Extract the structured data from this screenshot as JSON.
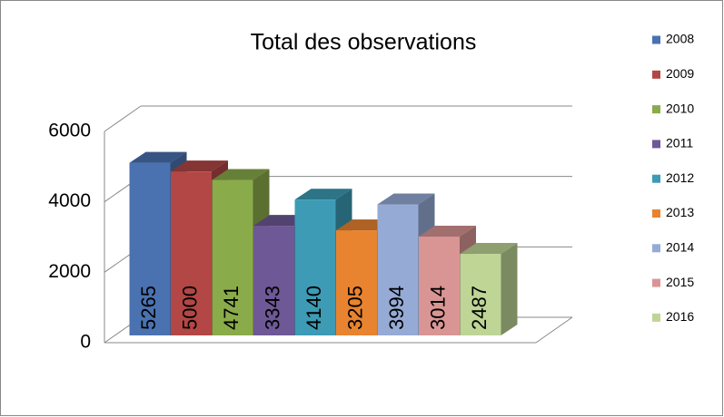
{
  "chart_data": {
    "type": "bar",
    "title": "Total des observations",
    "series": [
      {
        "name": "2008",
        "color": "#4a72b0",
        "values": [
          5265
        ]
      },
      {
        "name": "2009",
        "color": "#b24745",
        "values": [
          5000
        ]
      },
      {
        "name": "2010",
        "color": "#8aab4a",
        "values": [
          4741
        ]
      },
      {
        "name": "2011",
        "color": "#6e5896",
        "values": [
          3343
        ]
      },
      {
        "name": "2012",
        "color": "#3d9bb5",
        "values": [
          4140
        ]
      },
      {
        "name": "2013",
        "color": "#e8832f",
        "values": [
          3205
        ]
      },
      {
        "name": "2014",
        "color": "#95abd6",
        "values": [
          3994
        ]
      },
      {
        "name": "2015",
        "color": "#d99594",
        "values": [
          3014
        ]
      },
      {
        "name": "2016",
        "color": "#bed596",
        "values": [
          2487
        ]
      }
    ],
    "ylim": [
      0,
      6000
    ],
    "yticks": [
      0,
      2000,
      4000,
      6000
    ],
    "grid": true,
    "legend": "right"
  }
}
